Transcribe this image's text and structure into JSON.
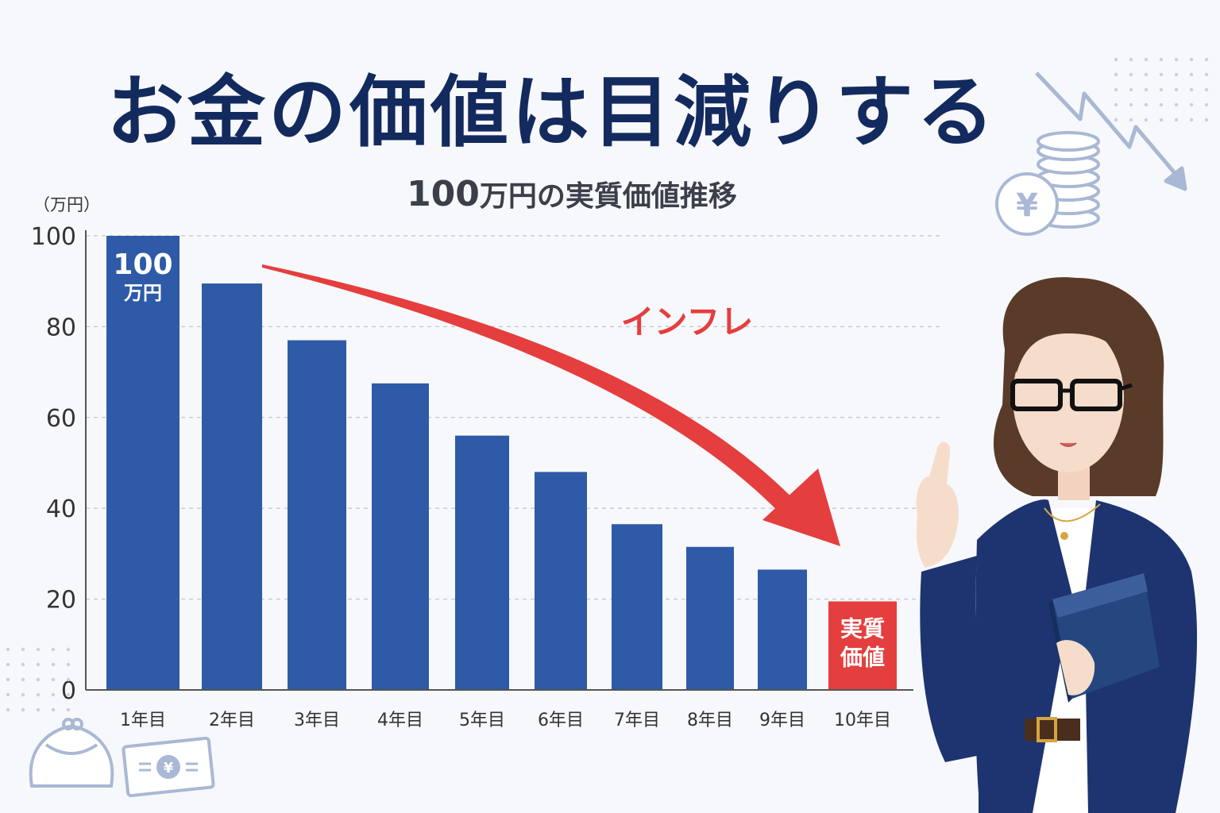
{
  "title": "お金の価値は目減りする",
  "subtitle_num": "100",
  "subtitle_rest": "万円の実質価値推移",
  "unit_label": "（万円）",
  "arrow_label": "インフレ",
  "colors": {
    "bar": "#2e5aa7",
    "highlight": "#e53e3e",
    "title": "#132a5e",
    "arrow": "#e53e3e"
  },
  "chart_data": {
    "type": "bar",
    "title": "100万円の実質価値推移",
    "ylabel": "（万円）",
    "xlabel": "",
    "categories": [
      "1年目",
      "2年目",
      "3年目",
      "4年目",
      "5年目",
      "6年目",
      "7年目",
      "8年目",
      "9年目",
      "10年目"
    ],
    "values": [
      100,
      89.5,
      77,
      67.5,
      56,
      48,
      36.5,
      31.5,
      26.5,
      19.5
    ],
    "ylim": [
      0,
      100
    ],
    "yticks": [
      0,
      20,
      40,
      60,
      80,
      100
    ],
    "grid": true,
    "highlight_index": 9,
    "data_labels": [
      {
        "index": 0,
        "lines": [
          "100",
          "万円"
        ]
      },
      {
        "index": 9,
        "lines": [
          "実質",
          "価値"
        ]
      }
    ]
  }
}
